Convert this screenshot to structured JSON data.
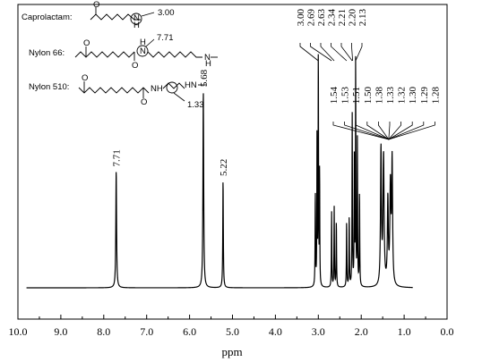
{
  "chart_data": {
    "type": "line",
    "xlabel": "ppm",
    "ylabel": "",
    "xlim": [
      10.0,
      0.0
    ],
    "x_reversed": true,
    "grid": false,
    "x_ticks": [
      "10.0",
      "9.0",
      "8.0",
      "7.0",
      "6.0",
      "5.0",
      "4.0",
      "3.0",
      "2.0",
      "1.0",
      "0.0"
    ],
    "x_tick_values": [
      10.0,
      9.0,
      8.0,
      7.0,
      6.0,
      5.0,
      4.0,
      3.0,
      2.0,
      1.0,
      0.0
    ],
    "baseline_range": [
      9.8,
      0.8
    ],
    "peaks": [
      {
        "ppm": 7.71,
        "height": 0.5,
        "width": 0.02
      },
      {
        "ppm": 5.68,
        "height": 0.84,
        "width": 0.02
      },
      {
        "ppm": 5.22,
        "height": 0.46,
        "width": 0.015
      },
      {
        "ppm": 3.07,
        "height": 0.4,
        "width": 0.012
      },
      {
        "ppm": 3.03,
        "height": 0.66,
        "width": 0.01
      },
      {
        "ppm": 3.0,
        "height": 1.0,
        "width": 0.012
      },
      {
        "ppm": 2.97,
        "height": 0.5,
        "width": 0.01
      },
      {
        "ppm": 2.69,
        "height": 0.32,
        "width": 0.012
      },
      {
        "ppm": 2.63,
        "height": 0.34,
        "width": 0.012
      },
      {
        "ppm": 2.58,
        "height": 0.28,
        "width": 0.012
      },
      {
        "ppm": 2.34,
        "height": 0.28,
        "width": 0.012
      },
      {
        "ppm": 2.28,
        "height": 0.3,
        "width": 0.012
      },
      {
        "ppm": 2.21,
        "height": 0.73,
        "width": 0.012
      },
      {
        "ppm": 2.16,
        "height": 0.56,
        "width": 0.012
      },
      {
        "ppm": 2.13,
        "height": 1.0,
        "width": 0.01
      },
      {
        "ppm": 2.09,
        "height": 0.62,
        "width": 0.012
      },
      {
        "ppm": 2.04,
        "height": 0.4,
        "width": 0.012
      },
      {
        "ppm": 1.54,
        "height": 0.58,
        "width": 0.025
      },
      {
        "ppm": 1.48,
        "height": 0.55,
        "width": 0.03
      },
      {
        "ppm": 1.38,
        "height": 0.36,
        "width": 0.025
      },
      {
        "ppm": 1.32,
        "height": 0.42,
        "width": 0.03
      },
      {
        "ppm": 1.28,
        "height": 0.52,
        "width": 0.025
      }
    ],
    "peak_labels": [
      {
        "text": "7.71",
        "ppm": 7.71
      },
      {
        "text": "5.68",
        "ppm": 5.68
      },
      {
        "text": "5.22",
        "ppm": 5.22
      }
    ],
    "group_labels_high": [
      "3.00",
      "2.69",
      "2.63",
      "2.34",
      "2.21",
      "2.20",
      "2.13"
    ],
    "group_labels_low": [
      "1.54",
      "1.53",
      "1.51",
      "1.50",
      "1.38",
      "1.33",
      "1.32",
      "1.30",
      "1.29",
      "1.28"
    ],
    "structures": [
      {
        "name": "Caprolactam:",
        "annotation": "3.00"
      },
      {
        "name": "Nylon 66:",
        "annotation": "7.71"
      },
      {
        "name": "Nylon 510:",
        "annotation": "1.33"
      }
    ],
    "structure_atoms": {
      "o": "O",
      "n": "N",
      "h": "H",
      "nh": "NH",
      "hn": "HN"
    }
  }
}
